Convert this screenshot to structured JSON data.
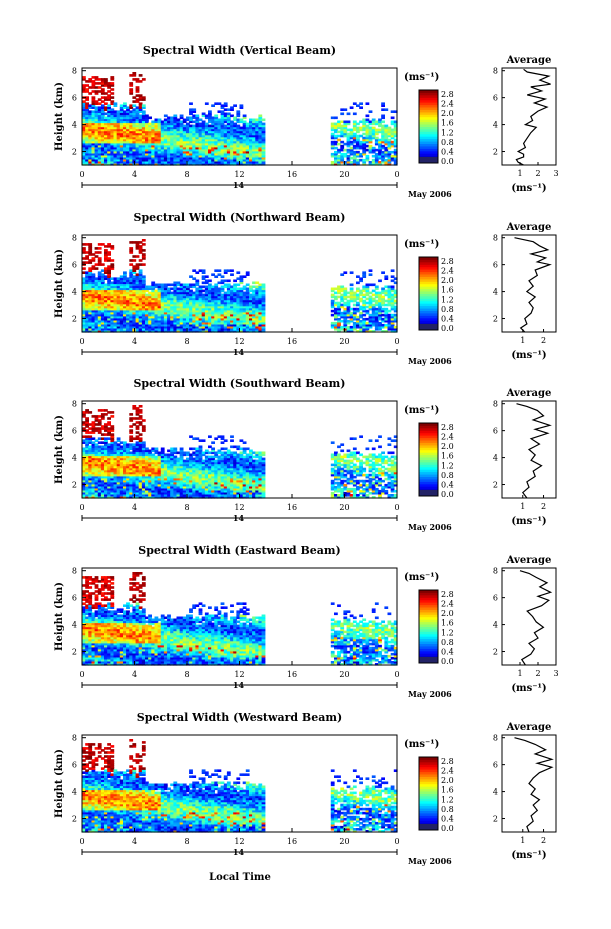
{
  "figure": {
    "bottom_xlabel": "Local Time",
    "date_label": "May 2006",
    "day_marker": "14",
    "unit_label": "(ms⁻¹)"
  },
  "chart_data": [
    {
      "type": "heatmap",
      "title": "Spectral Width (Vertical Beam)",
      "ylabel": "Height (km)",
      "xlim": [
        0,
        24
      ],
      "ylim": [
        1.0,
        8.2
      ],
      "x_ticks": [
        "0",
        "4",
        "8",
        "12",
        "16",
        "20",
        "0"
      ],
      "y_ticks": [
        "2",
        "4",
        "6",
        "8"
      ],
      "colorbar": {
        "range": [
          0.0,
          2.8
        ],
        "ticks": [
          "2.8",
          "2.4",
          "2.0",
          "1.6",
          "1.2",
          "0.8",
          "0.4",
          "0.0"
        ]
      },
      "average": {
        "title": "Average",
        "xlabel": "(ms⁻¹)",
        "x_ticks": [
          "1",
          "2",
          "3"
        ],
        "xlim": [
          0,
          3
        ],
        "profile": [
          [
            1.0,
            1.2
          ],
          [
            1.2,
            0.9
          ],
          [
            1.4,
            0.8
          ],
          [
            1.6,
            1.2
          ],
          [
            1.8,
            1.2
          ],
          [
            2.0,
            0.9
          ],
          [
            2.3,
            1.3
          ],
          [
            2.6,
            1.2
          ],
          [
            3.0,
            1.4
          ],
          [
            3.4,
            1.6
          ],
          [
            3.8,
            1.9
          ],
          [
            4.0,
            1.3
          ],
          [
            4.3,
            1.7
          ],
          [
            4.6,
            1.6
          ],
          [
            5.0,
            2.0
          ],
          [
            5.3,
            2.5
          ],
          [
            5.6,
            1.8
          ],
          [
            5.9,
            2.4
          ],
          [
            6.2,
            1.4
          ],
          [
            6.5,
            2.2
          ],
          [
            6.8,
            1.6
          ],
          [
            7.0,
            2.7
          ],
          [
            7.3,
            2.1
          ],
          [
            7.6,
            2.6
          ],
          [
            7.9,
            1.4
          ],
          [
            8.1,
            1.2
          ]
        ]
      }
    },
    {
      "type": "heatmap",
      "title": "Spectral Width (Northward Beam)",
      "ylabel": "Height (km)",
      "xlim": [
        0,
        24
      ],
      "ylim": [
        1.0,
        8.2
      ],
      "x_ticks": [
        "0",
        "4",
        "8",
        "12",
        "16",
        "20",
        "0"
      ],
      "y_ticks": [
        "2",
        "4",
        "6",
        "8"
      ],
      "colorbar": {
        "range": [
          0.0,
          2.8
        ],
        "ticks": [
          "2.8",
          "2.4",
          "2.0",
          "1.6",
          "1.2",
          "0.8",
          "0.4",
          "0.0"
        ]
      },
      "average": {
        "title": "Average",
        "xlabel": "(ms⁻¹)",
        "x_ticks": [
          "1",
          "2"
        ],
        "xlim": [
          0,
          2.6
        ],
        "profile": [
          [
            1.0,
            1.1
          ],
          [
            1.3,
            0.9
          ],
          [
            1.6,
            1.2
          ],
          [
            2.0,
            1.1
          ],
          [
            2.4,
            1.4
          ],
          [
            2.8,
            1.5
          ],
          [
            3.2,
            1.3
          ],
          [
            3.6,
            1.6
          ],
          [
            4.0,
            1.2
          ],
          [
            4.4,
            1.5
          ],
          [
            4.8,
            1.3
          ],
          [
            5.2,
            1.7
          ],
          [
            5.6,
            1.6
          ],
          [
            6.0,
            2.3
          ],
          [
            6.2,
            1.7
          ],
          [
            6.5,
            2.1
          ],
          [
            6.8,
            1.4
          ],
          [
            7.1,
            2.2
          ],
          [
            7.4,
            1.8
          ],
          [
            7.7,
            1.5
          ],
          [
            8.0,
            0.6
          ]
        ]
      }
    },
    {
      "type": "heatmap",
      "title": "Spectral Width (Southward Beam)",
      "ylabel": "Height (km)",
      "xlim": [
        0,
        24
      ],
      "ylim": [
        1.0,
        8.2
      ],
      "x_ticks": [
        "0",
        "4",
        "8",
        "12",
        "16",
        "20",
        "0"
      ],
      "y_ticks": [
        "2",
        "4",
        "6",
        "8"
      ],
      "colorbar": {
        "range": [
          0.0,
          2.8
        ],
        "ticks": [
          "2.8",
          "2.4",
          "2.0",
          "1.6",
          "1.2",
          "0.8",
          "0.4",
          "0.0"
        ]
      },
      "average": {
        "title": "Average",
        "xlabel": "(ms⁻¹)",
        "x_ticks": [
          "1",
          "2"
        ],
        "xlim": [
          0,
          2.6
        ],
        "profile": [
          [
            1.0,
            1.2
          ],
          [
            1.4,
            1.0
          ],
          [
            1.8,
            1.3
          ],
          [
            2.2,
            1.2
          ],
          [
            2.6,
            1.6
          ],
          [
            3.0,
            1.5
          ],
          [
            3.4,
            1.9
          ],
          [
            3.8,
            1.4
          ],
          [
            4.2,
            1.6
          ],
          [
            4.6,
            1.3
          ],
          [
            5.0,
            1.8
          ],
          [
            5.4,
            1.4
          ],
          [
            5.8,
            2.2
          ],
          [
            6.1,
            1.6
          ],
          [
            6.4,
            2.3
          ],
          [
            6.8,
            1.5
          ],
          [
            7.1,
            2.0
          ],
          [
            7.5,
            1.7
          ],
          [
            7.8,
            1.2
          ],
          [
            8.0,
            0.7
          ]
        ]
      }
    },
    {
      "type": "heatmap",
      "title": "Spectral Width (Eastward Beam)",
      "ylabel": "Height (km)",
      "xlim": [
        0,
        24
      ],
      "ylim": [
        1.0,
        8.2
      ],
      "x_ticks": [
        "0",
        "4",
        "8",
        "12",
        "16",
        "20",
        "0"
      ],
      "y_ticks": [
        "2",
        "4",
        "6",
        "8"
      ],
      "colorbar": {
        "range": [
          0.0,
          2.8
        ],
        "ticks": [
          "2.8",
          "2.4",
          "2.0",
          "1.6",
          "1.2",
          "0.8",
          "0.4",
          "0.0"
        ]
      },
      "average": {
        "title": "Average",
        "xlabel": "(ms⁻¹)",
        "x_ticks": [
          "1",
          "2",
          "3"
        ],
        "xlim": [
          0,
          3
        ],
        "profile": [
          [
            1.0,
            1.3
          ],
          [
            1.4,
            1.1
          ],
          [
            1.8,
            1.6
          ],
          [
            2.2,
            1.8
          ],
          [
            2.6,
            1.5
          ],
          [
            3.0,
            2.0
          ],
          [
            3.4,
            1.8
          ],
          [
            3.8,
            2.3
          ],
          [
            4.2,
            1.9
          ],
          [
            4.6,
            1.7
          ],
          [
            5.0,
            1.4
          ],
          [
            5.4,
            2.2
          ],
          [
            5.8,
            2.6
          ],
          [
            6.1,
            2.0
          ],
          [
            6.4,
            2.7
          ],
          [
            6.8,
            2.1
          ],
          [
            7.1,
            2.5
          ],
          [
            7.5,
            1.9
          ],
          [
            7.8,
            1.5
          ],
          [
            8.0,
            1.0
          ]
        ]
      }
    },
    {
      "type": "heatmap",
      "title": "Spectral Width (Westward Beam)",
      "ylabel": "Height (km)",
      "xlim": [
        0,
        24
      ],
      "ylim": [
        1.0,
        8.2
      ],
      "x_ticks": [
        "0",
        "4",
        "8",
        "12",
        "16",
        "20",
        "0"
      ],
      "y_ticks": [
        "2",
        "4",
        "6",
        "8"
      ],
      "colorbar": {
        "range": [
          0.0,
          2.8
        ],
        "ticks": [
          "2.8",
          "2.4",
          "2.0",
          "1.6",
          "1.2",
          "0.8",
          "0.4",
          "0.0"
        ]
      },
      "average": {
        "title": "Average",
        "xlabel": "(ms⁻¹)",
        "x_ticks": [
          "1",
          "2"
        ],
        "xlim": [
          0,
          2.6
        ],
        "profile": [
          [
            1.0,
            1.3
          ],
          [
            1.4,
            1.2
          ],
          [
            1.8,
            1.5
          ],
          [
            2.2,
            1.4
          ],
          [
            2.6,
            1.7
          ],
          [
            3.0,
            1.5
          ],
          [
            3.4,
            1.8
          ],
          [
            3.8,
            1.4
          ],
          [
            4.2,
            1.6
          ],
          [
            4.6,
            1.3
          ],
          [
            5.0,
            1.5
          ],
          [
            5.4,
            1.8
          ],
          [
            5.8,
            2.4
          ],
          [
            6.1,
            1.7
          ],
          [
            6.4,
            2.4
          ],
          [
            6.8,
            1.6
          ],
          [
            7.1,
            2.1
          ],
          [
            7.5,
            1.6
          ],
          [
            7.8,
            1.1
          ],
          [
            8.0,
            0.6
          ]
        ]
      }
    }
  ]
}
